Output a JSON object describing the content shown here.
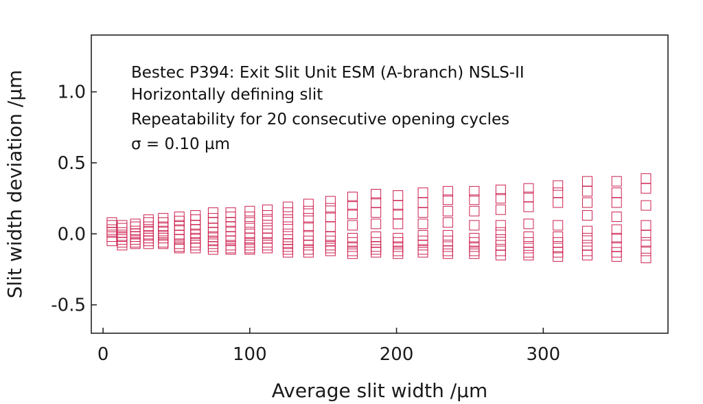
{
  "chart_data": {
    "type": "scatter",
    "title": "",
    "xlabel": "Average slit width /µm",
    "ylabel": "Slit width deviation /µm",
    "xlim": [
      -8,
      385
    ],
    "ylim": [
      -0.7,
      1.4
    ],
    "xticks": [
      0,
      100,
      200,
      300
    ],
    "xtick_labels": [
      "0",
      "100",
      "200",
      "300"
    ],
    "yticks": [
      -0.5,
      0.0,
      0.5,
      1.0
    ],
    "ytick_labels": [
      "-0.5",
      "0.0",
      "0.5",
      "1.0"
    ],
    "grid": false,
    "marker": "open-square",
    "marker_color": "#cc1f4e",
    "annotations": [
      "Bestec P394: Exit Slit Unit ESM (A-branch)  NSLS-II",
      "Horizontally defining slit",
      "Repeatability for 20 consecutive opening cycles",
      "σ = 0.10 µm"
    ],
    "series": [
      {
        "points": [
          {
            "x": 6,
            "y": [
              0.08,
              0.06,
              0.03,
              0.01,
              -0.02,
              -0.05
            ]
          },
          {
            "x": 13,
            "y": [
              0.06,
              0.04,
              0.01,
              -0.02,
              -0.04,
              -0.06,
              -0.08
            ]
          },
          {
            "x": 22,
            "y": [
              0.07,
              0.05,
              0.02,
              0.0,
              -0.02,
              -0.04,
              -0.06,
              -0.07
            ]
          },
          {
            "x": 31,
            "y": [
              0.1,
              0.08,
              0.05,
              0.02,
              -0.01,
              -0.03,
              -0.05,
              -0.07
            ]
          },
          {
            "x": 41,
            "y": [
              0.11,
              0.08,
              0.05,
              0.02,
              -0.01,
              -0.03,
              -0.06,
              -0.07
            ]
          },
          {
            "x": 52,
            "y": [
              0.12,
              0.09,
              0.06,
              0.03,
              -0.01,
              -0.04,
              -0.07,
              -0.09,
              -0.1
            ]
          },
          {
            "x": 63,
            "y": [
              0.13,
              0.1,
              0.06,
              0.03,
              0.0,
              -0.03,
              -0.06,
              -0.08,
              -0.1
            ]
          },
          {
            "x": 75,
            "y": [
              0.15,
              0.11,
              0.08,
              0.04,
              0.01,
              -0.02,
              -0.05,
              -0.07,
              -0.09,
              -0.11
            ]
          },
          {
            "x": 87,
            "y": [
              0.15,
              0.12,
              0.08,
              0.05,
              0.02,
              -0.02,
              -0.05,
              -0.08,
              -0.1,
              -0.11
            ]
          },
          {
            "x": 100,
            "y": [
              0.16,
              0.12,
              0.08,
              0.04,
              0.0,
              -0.03,
              -0.06,
              -0.08,
              -0.1,
              -0.11
            ]
          },
          {
            "x": 112,
            "y": [
              0.17,
              0.13,
              0.09,
              0.04,
              0.0,
              -0.03,
              -0.06,
              -0.08,
              -0.1
            ]
          },
          {
            "x": 126,
            "y": [
              0.19,
              0.15,
              0.1,
              0.05,
              0.0,
              -0.04,
              -0.07,
              -0.09,
              -0.11,
              -0.13
            ]
          },
          {
            "x": 140,
            "y": [
              0.21,
              0.16,
              0.11,
              0.05,
              -0.01,
              -0.05,
              -0.08,
              -0.11,
              -0.13
            ]
          },
          {
            "x": 155,
            "y": [
              0.23,
              0.18,
              0.12,
              0.05,
              -0.02,
              -0.05,
              -0.08,
              -0.1,
              -0.12
            ]
          },
          {
            "x": 170,
            "y": [
              0.26,
              0.2,
              0.14,
              0.06,
              -0.03,
              -0.06,
              -0.09,
              -0.12,
              -0.14
            ]
          },
          {
            "x": 186,
            "y": [
              0.28,
              0.22,
              0.15,
              0.07,
              -0.02,
              -0.06,
              -0.09,
              -0.11,
              -0.13
            ]
          },
          {
            "x": 201,
            "y": [
              0.27,
              0.2,
              0.14,
              0.07,
              -0.03,
              -0.06,
              -0.09,
              -0.12,
              -0.14
            ]
          },
          {
            "x": 218,
            "y": [
              0.29,
              0.22,
              0.15,
              0.07,
              -0.01,
              -0.05,
              -0.08,
              -0.11,
              -0.13
            ]
          },
          {
            "x": 235,
            "y": [
              0.3,
              0.24,
              0.16,
              0.08,
              -0.01,
              -0.05,
              -0.09,
              -0.12,
              -0.14
            ]
          },
          {
            "x": 253,
            "y": [
              0.3,
              0.24,
              0.16,
              0.06,
              -0.03,
              -0.06,
              -0.09,
              -0.12,
              -0.14
            ]
          },
          {
            "x": 271,
            "y": [
              0.31,
              0.25,
              0.17,
              0.06,
              0.01,
              -0.04,
              -0.08,
              -0.12,
              -0.15
            ]
          },
          {
            "x": 290,
            "y": [
              0.32,
              0.26,
              0.19,
              0.07,
              -0.02,
              -0.06,
              -0.1,
              -0.13,
              -0.15
            ]
          },
          {
            "x": 310,
            "y": [
              0.34,
              0.29,
              0.22,
              0.06,
              -0.02,
              -0.06,
              -0.1,
              -0.13,
              -0.16
            ]
          },
          {
            "x": 330,
            "y": [
              0.37,
              0.3,
              0.22,
              0.13,
              0.02,
              -0.03,
              -0.08,
              -0.12,
              -0.15
            ]
          },
          {
            "x": 350,
            "y": [
              0.37,
              0.29,
              0.22,
              0.12,
              0.03,
              -0.03,
              -0.09,
              -0.13,
              -0.16
            ]
          },
          {
            "x": 370,
            "y": [
              0.39,
              0.32,
              0.2,
              0.06,
              -0.01,
              -0.06,
              -0.12,
              -0.17
            ]
          }
        ]
      }
    ]
  }
}
